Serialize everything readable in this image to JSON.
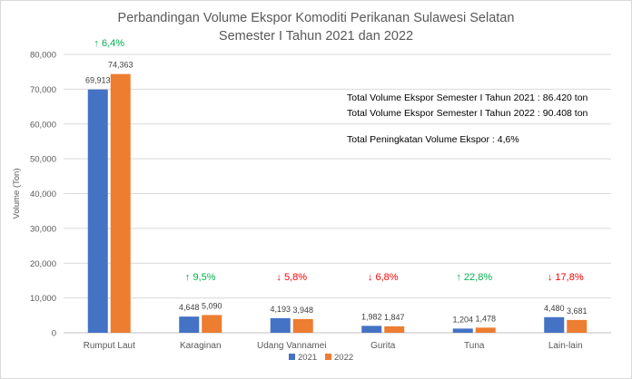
{
  "chart_data": {
    "type": "bar",
    "title": [
      "Perbandingan Volume Ekspor Komoditi Perikanan Sulawesi Selatan",
      "Semester I Tahun 2021 dan 2022"
    ],
    "ylabel": "Volume (Ton)",
    "xlabel": "",
    "ylim": [
      0,
      80000
    ],
    "yticks": [
      "0",
      "10,000",
      "20,000",
      "30,000",
      "40,000",
      "50,000",
      "60,000",
      "70,000",
      "80,000"
    ],
    "grid": true,
    "legend_position": "bottom",
    "categories": [
      "Rumput Laut",
      "Karaginan",
      "Udang Vannamei",
      "Gurita",
      "Tuna",
      "Lain-lain"
    ],
    "series": [
      {
        "name": "2021",
        "color": "#4472c4",
        "values": [
          69913,
          4648,
          4193,
          1982,
          1204,
          4480
        ],
        "labels": [
          "69,913",
          "4,648",
          "4,193",
          "1,982",
          "1,204",
          "4,480"
        ]
      },
      {
        "name": "2022",
        "color": "#ed7d31",
        "values": [
          74363,
          5090,
          3948,
          1847,
          1478,
          3681
        ],
        "labels": [
          "74,363",
          "5,090",
          "3,948",
          "1,847",
          "1,478",
          "3,681"
        ]
      }
    ],
    "changes": [
      {
        "text": "6,4%",
        "direction": "up"
      },
      {
        "text": "9,5%",
        "direction": "up"
      },
      {
        "text": "5,8%",
        "direction": "down"
      },
      {
        "text": "6,8%",
        "direction": "down"
      },
      {
        "text": "22,8%",
        "direction": "up"
      },
      {
        "text": "17,8%",
        "direction": "down"
      }
    ],
    "annotations": [
      "Total Volume Ekspor Semester I Tahun 2021  : 86.420  ton",
      "Total Volume Ekspor Semester I Tahun 2022 : 90.408  ton",
      "Total Peningkatan Volume Ekspor : 4,6%"
    ],
    "colors": {
      "up": "#00b050",
      "down": "#ff0000",
      "grid": "#d9d9d9",
      "text": "#595959"
    }
  }
}
